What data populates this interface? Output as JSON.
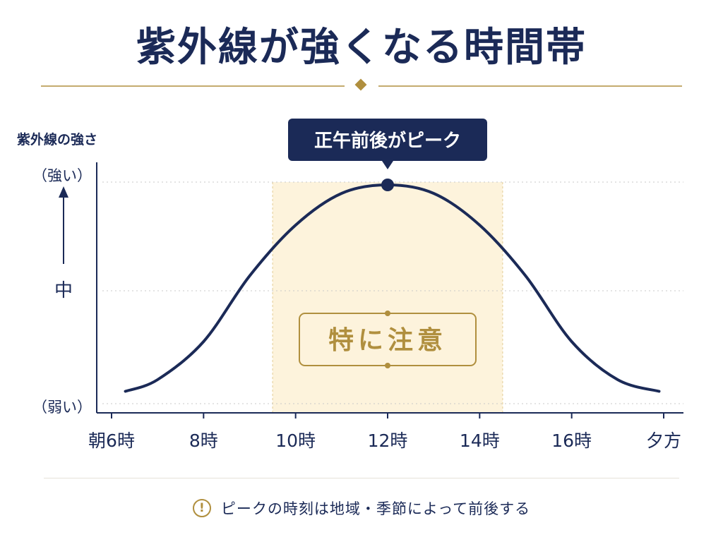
{
  "page": {
    "title": "紫外線が強くなる時間帯",
    "note_icon": "exclamation-circle-icon",
    "note_text": "ピークの時刻は地域・季節によって前後する"
  },
  "colors": {
    "navy": "#1b2a57",
    "gold": "#b08f3e",
    "highlight_fill": "#fdf3dc",
    "grid": "#c9c9c9"
  },
  "chart_data": {
    "type": "line",
    "x_unit": "hour",
    "xlim": [
      6,
      18
    ],
    "ylim": [
      0,
      100
    ],
    "ylabel": "紫外線の強さ",
    "y_levels": [
      {
        "label": "（強い）",
        "value": 100
      },
      {
        "label": "中",
        "value": 50
      },
      {
        "label": "（弱い）",
        "value": 0
      }
    ],
    "x_ticks": [
      {
        "label": "朝6時",
        "value": 6
      },
      {
        "label": "8時",
        "value": 8
      },
      {
        "label": "10時",
        "value": 10
      },
      {
        "label": "12時",
        "value": 12
      },
      {
        "label": "14時",
        "value": 14
      },
      {
        "label": "16時",
        "value": 16
      },
      {
        "label": "夕方",
        "value": 18
      }
    ],
    "series": [
      {
        "x": [
          6.3,
          7,
          8,
          9,
          10,
          11,
          12,
          13,
          14,
          15,
          16,
          17,
          17.9
        ],
        "values": [
          2.5,
          8,
          26,
          57,
          81,
          96,
          100,
          96,
          81,
          57,
          26,
          8,
          2.5
        ]
      }
    ],
    "peak": {
      "x": 12,
      "value": 100,
      "label": "正午前後がピーク"
    },
    "highlight": {
      "x_start": 9.5,
      "x_end": 14.5,
      "label": "特に注意"
    },
    "grid": true
  }
}
